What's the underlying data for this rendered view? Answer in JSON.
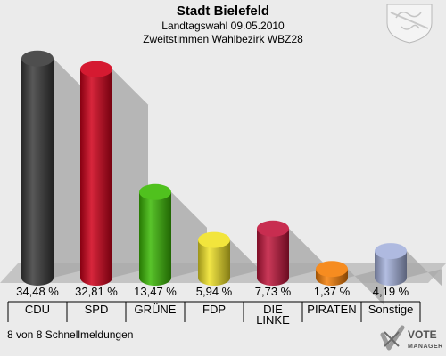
{
  "header": {
    "title": "Stadt Bielefeld",
    "subtitle1": "Landtagswahl 09.05.2010",
    "subtitle2": "Zweitstimmen Wahlbezirk WBZ28"
  },
  "footer": {
    "note": "8 von 8 Schnellmeldungen",
    "logo_line1": "VOTE",
    "logo_line2": "MANAGER"
  },
  "colors": {
    "background": "#ebebeb",
    "floor": "#c4c4c4",
    "shadow": "#a9a9a9"
  },
  "chart_data": {
    "type": "bar",
    "title": "Stadt Bielefeld",
    "categories": [
      "CDU",
      "SPD",
      "GRÜNE",
      "FDP",
      "DIE LINKE",
      "PIRATEN",
      "Sonstige"
    ],
    "category_lines": [
      [
        "CDU"
      ],
      [
        "SPD"
      ],
      [
        "GRÜNE"
      ],
      [
        "FDP"
      ],
      [
        "DIE",
        "LINKE"
      ],
      [
        "PIRATEN"
      ],
      [
        "Sonstige"
      ]
    ],
    "values": [
      34.48,
      32.81,
      13.47,
      5.94,
      7.73,
      1.37,
      4.19
    ],
    "value_labels": [
      "34,48 %",
      "32,81 %",
      "13,47 %",
      "5,94 %",
      "7,73 %",
      "1,37 %",
      "4,19 %"
    ],
    "bar_colors": [
      "#3a3a3a",
      "#d0001a",
      "#3cba05",
      "#f0e226",
      "#c2163c",
      "#f57f07",
      "#a6b2dd"
    ],
    "ylim": [
      0,
      35
    ],
    "grid": false,
    "legend": "none"
  }
}
